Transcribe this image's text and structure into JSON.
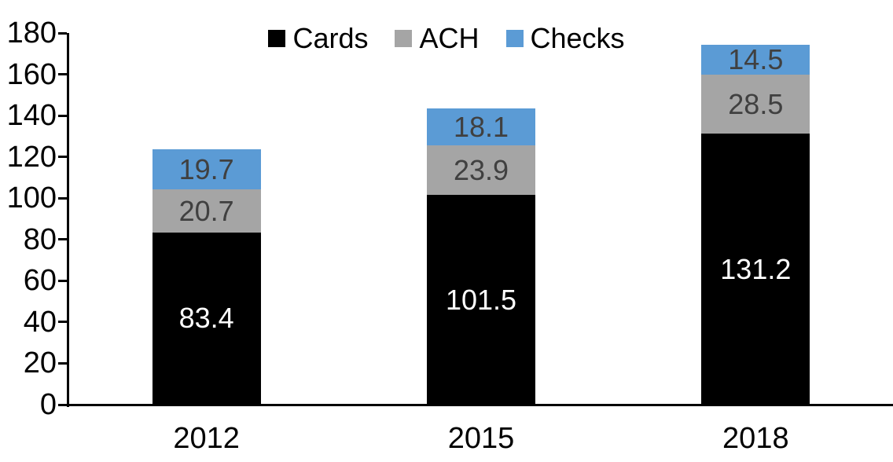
{
  "chart_data": {
    "type": "bar",
    "stacked": true,
    "title": "",
    "categories": [
      "2012",
      "2015",
      "2018"
    ],
    "series": [
      {
        "name": "Cards",
        "color": "#000000",
        "label_color": "#ffffff",
        "values": [
          83.4,
          101.5,
          131.2
        ]
      },
      {
        "name": "ACH",
        "color": "#a5a5a5",
        "label_color": "#404040",
        "values": [
          20.7,
          23.9,
          28.5
        ]
      },
      {
        "name": "Checks",
        "color": "#5b9bd5",
        "label_color": "#404040",
        "values": [
          19.7,
          18.1,
          14.5
        ]
      }
    ],
    "totals": [
      123.8,
      143.5,
      174.2
    ],
    "xlabel": "",
    "ylabel": "",
    "ylim": [
      0,
      180
    ],
    "yticks": [
      0,
      20,
      40,
      60,
      80,
      100,
      120,
      140,
      160,
      180
    ],
    "grid": false,
    "legend_position": "top",
    "axis_color": "#000000",
    "background_color": "#ffffff"
  }
}
